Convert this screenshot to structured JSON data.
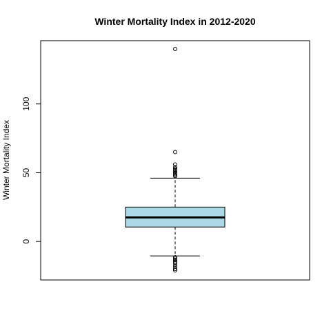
{
  "chart_data": {
    "type": "boxplot",
    "title": "Winter Mortality Index in 2012-2020",
    "xlabel": "",
    "ylabel": "Winter Mortality Index",
    "ylim": [
      -28,
      146
    ],
    "yticks": [
      0,
      50,
      100
    ],
    "grid": false,
    "box": {
      "fill": "#add8e6",
      "whisker_low": -10.5,
      "q1": 10.5,
      "median": 17.5,
      "q3": 25,
      "whisker_high": 46
    },
    "outliers": [
      140,
      65,
      56,
      54,
      53,
      52,
      51,
      50,
      49,
      48,
      47.5,
      -11.5,
      -12.5,
      -13.5,
      -14.5,
      -15.5,
      -17,
      -18.5,
      -20,
      -21
    ]
  }
}
